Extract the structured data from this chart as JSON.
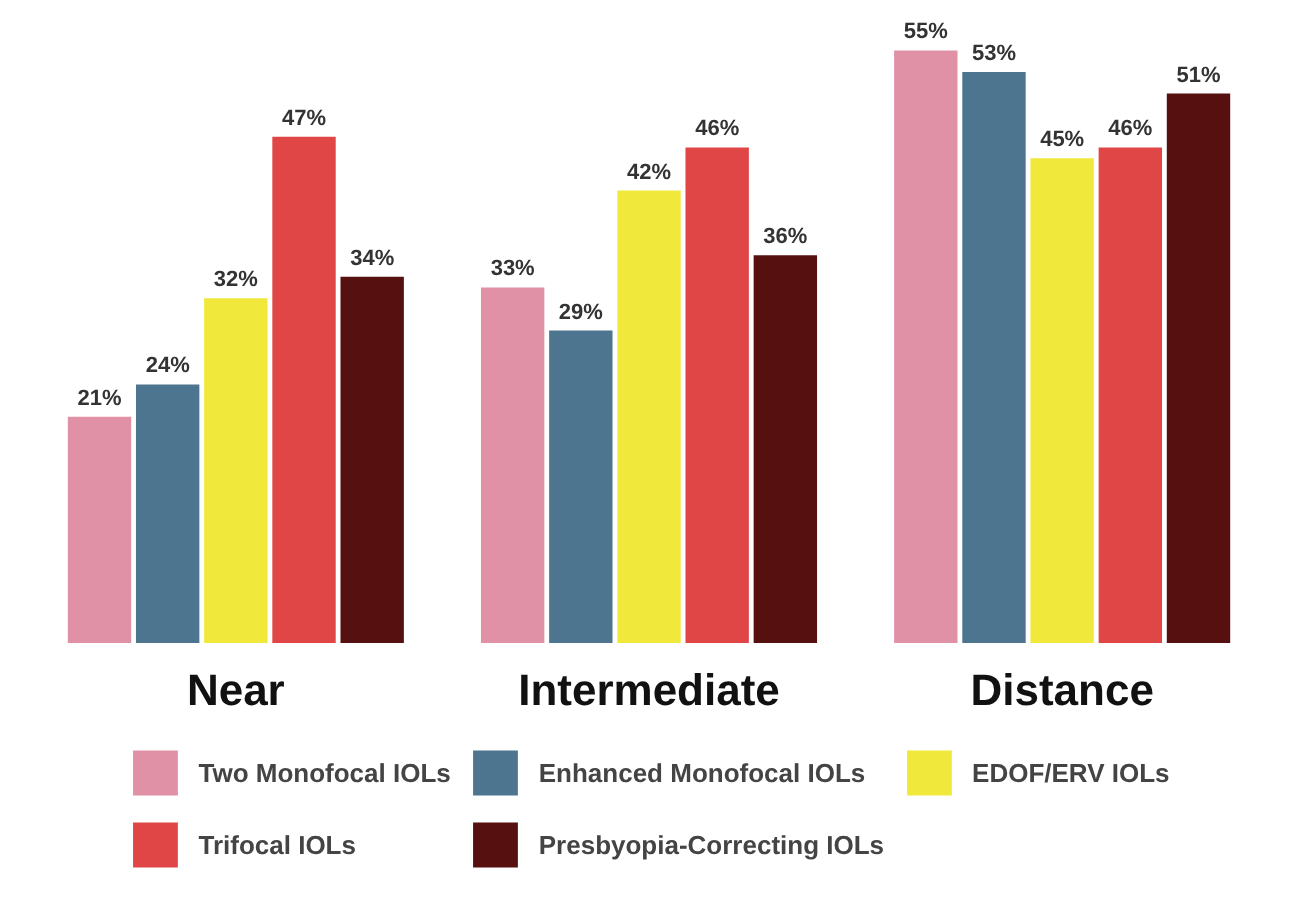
{
  "chart_data": {
    "type": "bar",
    "categories": [
      "Near",
      "Intermediate",
      "Distance"
    ],
    "series": [
      {
        "name": "Two Monofocal IOLs",
        "color": "#e091a6",
        "values": [
          21,
          33,
          55
        ],
        "value_labels": [
          "21%",
          "33%",
          "55%"
        ]
      },
      {
        "name": "Enhanced Monofocal IOLs",
        "color": "#4e7590",
        "values": [
          24,
          29,
          53
        ],
        "value_labels": [
          "24%",
          "29%",
          "53%"
        ]
      },
      {
        "name": "EDOF/ERV IOLs",
        "color": "#f0e93c",
        "values": [
          32,
          42,
          45
        ],
        "value_labels": [
          "32%",
          "42%",
          "45%"
        ]
      },
      {
        "name": "Trifocal IOLs",
        "color": "#e04646",
        "values": [
          47,
          46,
          46
        ],
        "value_labels": [
          "47%",
          "46%",
          "46%"
        ]
      },
      {
        "name": "Presbyopia-Correcting IOLs",
        "color": "#561010",
        "values": [
          34,
          36,
          51
        ],
        "value_labels": [
          "34%",
          "36%",
          "51%"
        ]
      }
    ],
    "legend": "bottom",
    "grid": false
  }
}
